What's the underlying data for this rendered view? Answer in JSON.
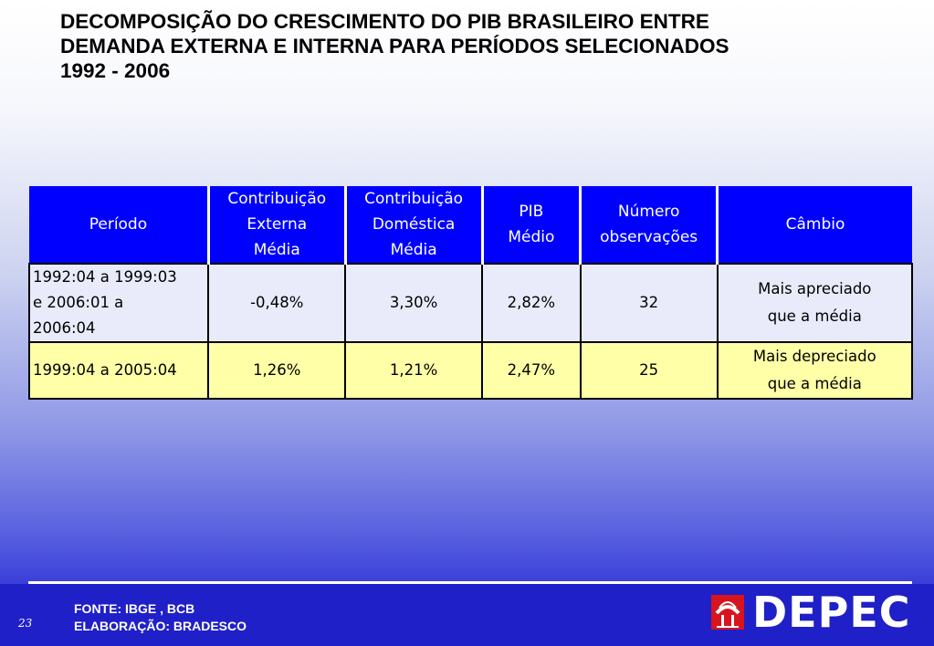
{
  "title": {
    "line1": "DECOMPOSIÇÃO DO CRESCIMENTO DO PIB BRASILEIRO ENTRE",
    "line2": "DEMANDA EXTERNA E INTERNA PARA PERÍODOS SELECIONADOS",
    "line3": "1992 - 2006"
  },
  "table": {
    "headers": {
      "periodo": "Período",
      "contrib_externa": [
        "Contribuição",
        "Externa",
        "Média"
      ],
      "contrib_domestica": [
        "Contribuição",
        "Doméstica",
        "Média"
      ],
      "pib": [
        "PIB",
        "Médio"
      ],
      "numero": [
        "Número",
        "observações"
      ],
      "cambio": "Câmbio"
    },
    "rows": [
      {
        "periodo": [
          "1992:04 a 1999:03",
          "e 2006:01 a",
          "2006:04"
        ],
        "contrib_externa": "-0,48%",
        "contrib_domestica": "3,30%",
        "pib": "2,82%",
        "numero": "32",
        "cambio": [
          "Mais apreciado",
          "que a média"
        ]
      },
      {
        "periodo": [
          "1999:04 a 2005:04"
        ],
        "contrib_externa": "1,26%",
        "contrib_domestica": "1,21%",
        "pib": "2,47%",
        "numero": "25",
        "cambio": [
          "Mais depreciado",
          "que a média"
        ]
      }
    ]
  },
  "footer": {
    "page_number": "23",
    "source_line1": "FONTE: IBGE , BCB",
    "source_line2": "ELABORAÇÃO: BRADESCO",
    "logo_text": "DEPEC"
  },
  "colors": {
    "header_bg": "#0000ff",
    "row1_bg": "#e9ebfa",
    "row2_bg": "#ffffa8",
    "footer_bg": "#2020c8",
    "logo_red": "#d8141e"
  }
}
